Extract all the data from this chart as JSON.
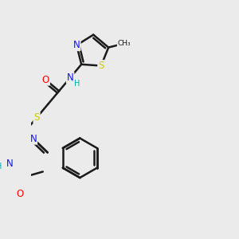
{
  "bg_color": "#ebebeb",
  "bond_color": "#1a1a1a",
  "bond_width": 1.8,
  "atom_colors": {
    "N": "#1414ff",
    "O": "#ff0000",
    "S": "#cccc00",
    "H": "#00aaaa",
    "C": "#1a1a1a",
    "CH3": "#1a1a1a"
  },
  "font_size": 8.5,
  "font_size_small": 7.0
}
